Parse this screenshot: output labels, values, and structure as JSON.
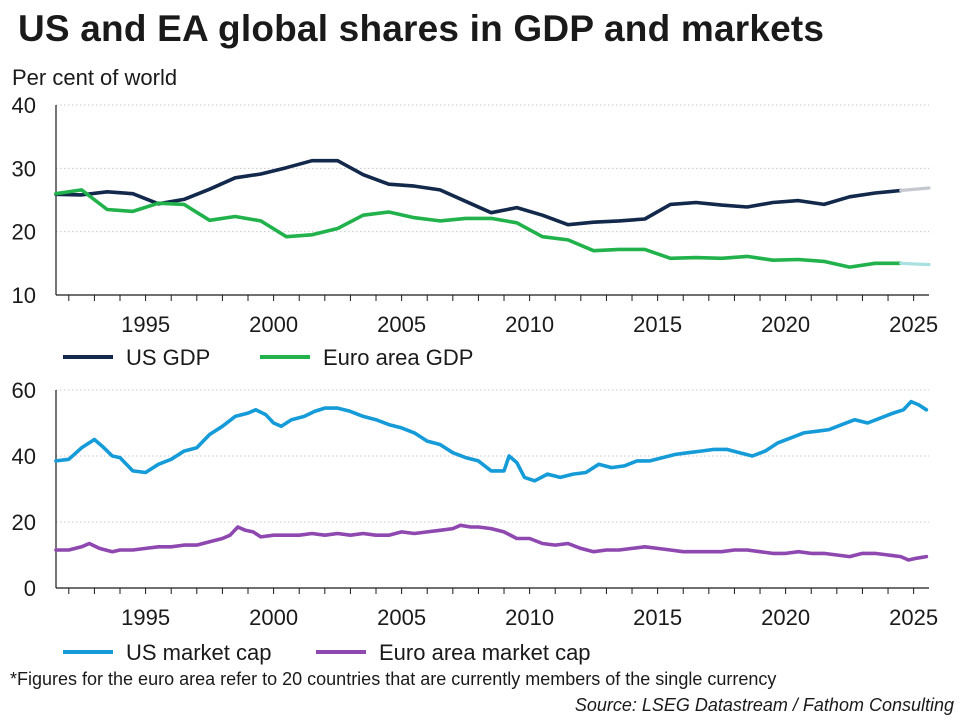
{
  "title": "US and EA global shares in GDP and markets",
  "footnote": "*Figures for the euro area refer to 20 countries that are currently members of the single currency",
  "source": "Source: LSEG Datastream / Fathom Consulting",
  "colors": {
    "us_gdp": "#13294b",
    "ea_gdp": "#22b24c",
    "us_mcap": "#159bd7",
    "ea_mcap": "#8e48b0",
    "us_gdp_forecast": "#c6c8cf",
    "ea_gdp_forecast": "#a9e0e2"
  },
  "chart_data": [
    {
      "type": "line",
      "ylabel": "Per cent of world",
      "xlim": [
        1991.5,
        2025.6
      ],
      "ylim": [
        10,
        40
      ],
      "yticks": [
        10,
        20,
        30,
        40
      ],
      "xticks": [
        1995,
        2000,
        2005,
        2010,
        2015,
        2020,
        2025
      ],
      "grid": true,
      "legend_position": "bottom",
      "forecast_from": 2024.5,
      "series": [
        {
          "name": "US GDP",
          "color_key": "us_gdp",
          "points": [
            [
              1991.5,
              25.9
            ],
            [
              1992.5,
              25.8
            ],
            [
              1993.5,
              26.3
            ],
            [
              1994.5,
              26.0
            ],
            [
              1995.5,
              24.4
            ],
            [
              1996.5,
              25.1
            ],
            [
              1997.5,
              26.7
            ],
            [
              1998.5,
              28.5
            ],
            [
              1999.5,
              29.1
            ],
            [
              2000.5,
              30.1
            ],
            [
              2001.5,
              31.2
            ],
            [
              2002.5,
              31.2
            ],
            [
              2003.5,
              29.0
            ],
            [
              2004.5,
              27.5
            ],
            [
              2005.5,
              27.2
            ],
            [
              2006.5,
              26.6
            ],
            [
              2007.5,
              24.8
            ],
            [
              2008.5,
              23.0
            ],
            [
              2009.5,
              23.8
            ],
            [
              2010.5,
              22.6
            ],
            [
              2011.5,
              21.1
            ],
            [
              2012.5,
              21.5
            ],
            [
              2013.5,
              21.7
            ],
            [
              2014.5,
              22.0
            ],
            [
              2015.5,
              24.3
            ],
            [
              2016.5,
              24.6
            ],
            [
              2017.5,
              24.2
            ],
            [
              2018.5,
              23.9
            ],
            [
              2019.5,
              24.6
            ],
            [
              2020.5,
              24.9
            ],
            [
              2021.5,
              24.3
            ],
            [
              2022.5,
              25.5
            ],
            [
              2023.5,
              26.1
            ],
            [
              2024.5,
              26.5
            ],
            [
              2025.6,
              26.9
            ]
          ]
        },
        {
          "name": "Euro area GDP",
          "color_key": "ea_gdp",
          "points": [
            [
              1991.5,
              26.0
            ],
            [
              1992.5,
              26.6
            ],
            [
              1993.5,
              23.5
            ],
            [
              1994.5,
              23.2
            ],
            [
              1995.5,
              24.5
            ],
            [
              1996.5,
              24.3
            ],
            [
              1997.5,
              21.8
            ],
            [
              1998.5,
              22.4
            ],
            [
              1999.5,
              21.7
            ],
            [
              2000.5,
              19.2
            ],
            [
              2001.5,
              19.5
            ],
            [
              2002.5,
              20.5
            ],
            [
              2003.5,
              22.6
            ],
            [
              2004.5,
              23.1
            ],
            [
              2005.5,
              22.2
            ],
            [
              2006.5,
              21.7
            ],
            [
              2007.5,
              22.1
            ],
            [
              2008.5,
              22.1
            ],
            [
              2009.5,
              21.4
            ],
            [
              2010.5,
              19.2
            ],
            [
              2011.5,
              18.7
            ],
            [
              2012.5,
              17.0
            ],
            [
              2013.5,
              17.2
            ],
            [
              2014.5,
              17.2
            ],
            [
              2015.5,
              15.8
            ],
            [
              2016.5,
              15.9
            ],
            [
              2017.5,
              15.8
            ],
            [
              2018.5,
              16.1
            ],
            [
              2019.5,
              15.5
            ],
            [
              2020.5,
              15.6
            ],
            [
              2021.5,
              15.3
            ],
            [
              2022.5,
              14.4
            ],
            [
              2023.5,
              15.0
            ],
            [
              2024.5,
              15.0
            ],
            [
              2025.6,
              14.8
            ]
          ]
        }
      ]
    },
    {
      "type": "line",
      "xlim": [
        1991.5,
        2025.6
      ],
      "ylim": [
        0,
        60
      ],
      "yticks": [
        0,
        20,
        40,
        60
      ],
      "xticks": [
        1995,
        2000,
        2005,
        2010,
        2015,
        2020,
        2025
      ],
      "grid": true,
      "legend_position": "bottom",
      "series": [
        {
          "name": "US market cap",
          "color_key": "us_mcap",
          "points": [
            [
              1991.5,
              38.5
            ],
            [
              1992.0,
              39.0
            ],
            [
              1992.5,
              42.5
            ],
            [
              1993.0,
              45.0
            ],
            [
              1993.3,
              43.0
            ],
            [
              1993.7,
              40.0
            ],
            [
              1994.0,
              39.5
            ],
            [
              1994.5,
              35.5
            ],
            [
              1995.0,
              35.0
            ],
            [
              1995.5,
              37.5
            ],
            [
              1996.0,
              39.0
            ],
            [
              1996.5,
              41.5
            ],
            [
              1997.0,
              42.5
            ],
            [
              1997.5,
              46.5
            ],
            [
              1998.0,
              49.0
            ],
            [
              1998.5,
              52.0
            ],
            [
              1999.0,
              53.0
            ],
            [
              1999.3,
              54.0
            ],
            [
              1999.7,
              52.5
            ],
            [
              2000.0,
              50.0
            ],
            [
              2000.3,
              49.0
            ],
            [
              2000.7,
              51.0
            ],
            [
              2001.2,
              52.0
            ],
            [
              2001.6,
              53.5
            ],
            [
              2002.0,
              54.5
            ],
            [
              2002.5,
              54.5
            ],
            [
              2003.0,
              53.5
            ],
            [
              2003.5,
              52.0
            ],
            [
              2004.0,
              51.0
            ],
            [
              2004.5,
              49.5
            ],
            [
              2005.0,
              48.5
            ],
            [
              2005.5,
              47.0
            ],
            [
              2006.0,
              44.5
            ],
            [
              2006.5,
              43.5
            ],
            [
              2007.0,
              41.0
            ],
            [
              2007.5,
              39.5
            ],
            [
              2008.0,
              38.5
            ],
            [
              2008.5,
              35.5
            ],
            [
              2009.0,
              35.5
            ],
            [
              2009.2,
              40.0
            ],
            [
              2009.5,
              38.0
            ],
            [
              2009.8,
              33.5
            ],
            [
              2010.2,
              32.5
            ],
            [
              2010.7,
              34.5
            ],
            [
              2011.2,
              33.5
            ],
            [
              2011.7,
              34.5
            ],
            [
              2012.2,
              35.0
            ],
            [
              2012.7,
              37.5
            ],
            [
              2013.2,
              36.5
            ],
            [
              2013.7,
              37.0
            ],
            [
              2014.2,
              38.5
            ],
            [
              2014.7,
              38.5
            ],
            [
              2015.2,
              39.5
            ],
            [
              2015.7,
              40.5
            ],
            [
              2016.2,
              41.0
            ],
            [
              2016.7,
              41.5
            ],
            [
              2017.2,
              42.0
            ],
            [
              2017.7,
              42.0
            ],
            [
              2018.2,
              41.0
            ],
            [
              2018.7,
              40.0
            ],
            [
              2019.2,
              41.5
            ],
            [
              2019.7,
              44.0
            ],
            [
              2020.2,
              45.5
            ],
            [
              2020.7,
              47.0
            ],
            [
              2021.2,
              47.5
            ],
            [
              2021.7,
              48.0
            ],
            [
              2022.2,
              49.5
            ],
            [
              2022.7,
              51.0
            ],
            [
              2023.2,
              50.0
            ],
            [
              2023.7,
              51.5
            ],
            [
              2024.2,
              53.0
            ],
            [
              2024.6,
              54.0
            ],
            [
              2024.9,
              56.5
            ],
            [
              2025.2,
              55.5
            ],
            [
              2025.5,
              54.0
            ]
          ]
        },
        {
          "name": "Euro area market cap",
          "color_key": "ea_mcap",
          "points": [
            [
              1991.5,
              11.5
            ],
            [
              1992.0,
              11.5
            ],
            [
              1992.5,
              12.5
            ],
            [
              1992.8,
              13.5
            ],
            [
              1993.2,
              12.0
            ],
            [
              1993.7,
              11.0
            ],
            [
              1994.0,
              11.5
            ],
            [
              1994.5,
              11.5
            ],
            [
              1995.0,
              12.0
            ],
            [
              1995.5,
              12.5
            ],
            [
              1996.0,
              12.5
            ],
            [
              1996.5,
              13.0
            ],
            [
              1997.0,
              13.0
            ],
            [
              1997.5,
              14.0
            ],
            [
              1998.0,
              15.0
            ],
            [
              1998.3,
              16.0
            ],
            [
              1998.6,
              18.5
            ],
            [
              1998.9,
              17.5
            ],
            [
              1999.2,
              17.0
            ],
            [
              1999.5,
              15.5
            ],
            [
              2000.0,
              16.0
            ],
            [
              2000.5,
              16.0
            ],
            [
              2001.0,
              16.0
            ],
            [
              2001.5,
              16.5
            ],
            [
              2002.0,
              16.0
            ],
            [
              2002.5,
              16.5
            ],
            [
              2003.0,
              16.0
            ],
            [
              2003.5,
              16.5
            ],
            [
              2004.0,
              16.0
            ],
            [
              2004.5,
              16.0
            ],
            [
              2005.0,
              17.0
            ],
            [
              2005.5,
              16.5
            ],
            [
              2006.0,
              17.0
            ],
            [
              2006.5,
              17.5
            ],
            [
              2007.0,
              18.0
            ],
            [
              2007.3,
              19.0
            ],
            [
              2007.7,
              18.5
            ],
            [
              2008.0,
              18.5
            ],
            [
              2008.5,
              18.0
            ],
            [
              2009.0,
              17.0
            ],
            [
              2009.5,
              15.0
            ],
            [
              2010.0,
              15.0
            ],
            [
              2010.5,
              13.5
            ],
            [
              2011.0,
              13.0
            ],
            [
              2011.5,
              13.5
            ],
            [
              2012.0,
              12.0
            ],
            [
              2012.5,
              11.0
            ],
            [
              2013.0,
              11.5
            ],
            [
              2013.5,
              11.5
            ],
            [
              2014.0,
              12.0
            ],
            [
              2014.5,
              12.5
            ],
            [
              2015.0,
              12.0
            ],
            [
              2015.5,
              11.5
            ],
            [
              2016.0,
              11.0
            ],
            [
              2016.5,
              11.0
            ],
            [
              2017.0,
              11.0
            ],
            [
              2017.5,
              11.0
            ],
            [
              2018.0,
              11.5
            ],
            [
              2018.5,
              11.5
            ],
            [
              2019.0,
              11.0
            ],
            [
              2019.5,
              10.5
            ],
            [
              2020.0,
              10.5
            ],
            [
              2020.5,
              11.0
            ],
            [
              2021.0,
              10.5
            ],
            [
              2021.5,
              10.5
            ],
            [
              2022.0,
              10.0
            ],
            [
              2022.5,
              9.5
            ],
            [
              2023.0,
              10.5
            ],
            [
              2023.5,
              10.5
            ],
            [
              2024.0,
              10.0
            ],
            [
              2024.5,
              9.5
            ],
            [
              2024.8,
              8.5
            ],
            [
              2025.1,
              9.0
            ],
            [
              2025.5,
              9.5
            ]
          ]
        }
      ]
    }
  ]
}
